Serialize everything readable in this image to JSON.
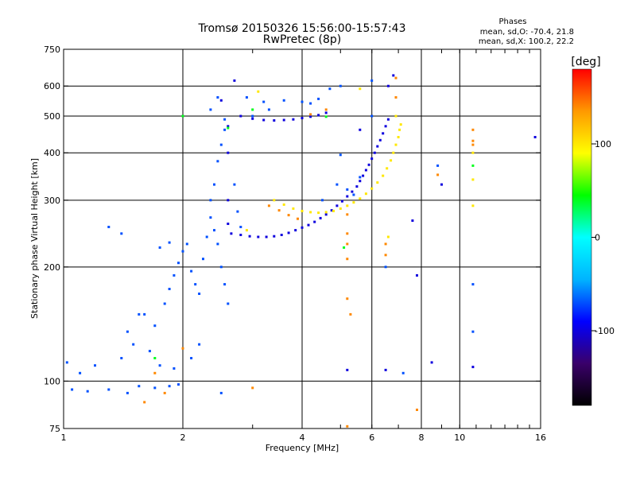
{
  "chart_data": {
    "type": "scatter",
    "title": "Tromsø 20150326 15:56:00-15:57:43",
    "subtitle": "RwPretec (8p)",
    "legend": {
      "header": "Phases",
      "line1": "mean, sd,O: -70.4, 21.8",
      "line2": "mean, sd,X: 100.2, 22.2"
    },
    "xlabel": "Frequency [MHz]",
    "ylabel": "Stationary phase Virtual Height [km]",
    "x_scale": "log",
    "y_scale": "log",
    "xlim": [
      1,
      16
    ],
    "ylim": [
      75,
      750
    ],
    "x_ticks": [
      1,
      2,
      4,
      6,
      8,
      10,
      16
    ],
    "x_tick_labels": [
      "1",
      "2",
      "4",
      "6",
      "8",
      "10",
      "16"
    ],
    "y_ticks": [
      75,
      100,
      200,
      300,
      400,
      500,
      600,
      750
    ],
    "y_tick_labels": [
      "75",
      "100",
      "200",
      "300",
      "400",
      "500",
      "600",
      "750"
    ],
    "grid": true,
    "colorbar": {
      "label": "[deg]",
      "range": [
        -180,
        180
      ],
      "ticks": [
        100,
        0,
        -100
      ],
      "tick_labels": [
        "100",
        "0",
        "-100"
      ],
      "colors": [
        "#000000",
        "#3a006a",
        "#0000ff",
        "#00b4ff",
        "#00ffff",
        "#00ff00",
        "#ffff00",
        "#ff9900",
        "#ff0000"
      ]
    },
    "series": [
      {
        "phase": -100,
        "points": [
          [
            2.65,
            245
          ],
          [
            2.8,
            243
          ],
          [
            2.95,
            241
          ],
          [
            3.1,
            240
          ],
          [
            3.25,
            240
          ],
          [
            3.4,
            241
          ],
          [
            3.55,
            243
          ],
          [
            3.7,
            246
          ],
          [
            3.85,
            250
          ],
          [
            4.0,
            254
          ],
          [
            4.15,
            258
          ],
          [
            4.3,
            263
          ],
          [
            4.45,
            269
          ],
          [
            4.6,
            275
          ],
          [
            4.75,
            282
          ],
          [
            4.9,
            290
          ],
          [
            5.05,
            298
          ],
          [
            5.2,
            307
          ],
          [
            5.35,
            316
          ],
          [
            5.5,
            326
          ],
          [
            5.6,
            337
          ],
          [
            5.7,
            348
          ],
          [
            5.8,
            360
          ],
          [
            5.9,
            372
          ],
          [
            6.0,
            386
          ],
          [
            6.1,
            400
          ],
          [
            6.2,
            416
          ],
          [
            6.3,
            432
          ],
          [
            6.4,
            450
          ],
          [
            6.5,
            470
          ],
          [
            6.6,
            490
          ],
          [
            2.8,
            500
          ],
          [
            3.0,
            492
          ],
          [
            3.2,
            488
          ],
          [
            3.4,
            487
          ],
          [
            3.6,
            488
          ],
          [
            3.8,
            490
          ],
          [
            4.0,
            494
          ],
          [
            4.2,
            498
          ],
          [
            4.4,
            503
          ],
          [
            4.6,
            510
          ],
          [
            2.5,
            550
          ],
          [
            2.6,
            470
          ],
          [
            2.6,
            400
          ],
          [
            2.6,
            300
          ],
          [
            2.6,
            260
          ],
          [
            2.7,
            620
          ],
          [
            5.6,
            460
          ],
          [
            6.6,
            600
          ],
          [
            6.8,
            640
          ],
          [
            5.2,
            107
          ],
          [
            6.5,
            107
          ],
          [
            7.6,
            265
          ],
          [
            7.8,
            190
          ],
          [
            8.5,
            112
          ],
          [
            9.0,
            330
          ],
          [
            10.8,
            109
          ],
          [
            15.5,
            440
          ]
        ]
      },
      {
        "phase": -70,
        "points": [
          [
            1.05,
            95
          ],
          [
            1.15,
            94
          ],
          [
            1.3,
            95
          ],
          [
            1.45,
            93
          ],
          [
            1.55,
            97
          ],
          [
            1.7,
            96
          ],
          [
            1.85,
            97
          ],
          [
            1.95,
            98
          ],
          [
            1.4,
            115
          ],
          [
            1.5,
            125
          ],
          [
            1.6,
            150
          ],
          [
            1.7,
            140
          ],
          [
            1.8,
            160
          ],
          [
            1.85,
            175
          ],
          [
            1.9,
            190
          ],
          [
            1.95,
            205
          ],
          [
            2.0,
            220
          ],
          [
            2.05,
            230
          ],
          [
            2.1,
            195
          ],
          [
            2.15,
            180
          ],
          [
            2.2,
            170
          ],
          [
            2.25,
            210
          ],
          [
            2.3,
            240
          ],
          [
            2.35,
            300
          ],
          [
            2.4,
            330
          ],
          [
            2.45,
            380
          ],
          [
            2.5,
            420
          ],
          [
            2.55,
            460
          ],
          [
            2.35,
            520
          ],
          [
            2.45,
            560
          ],
          [
            2.55,
            490
          ],
          [
            2.35,
            270
          ],
          [
            2.4,
            250
          ],
          [
            2.45,
            230
          ],
          [
            2.5,
            200
          ],
          [
            2.55,
            180
          ],
          [
            2.6,
            160
          ],
          [
            2.7,
            330
          ],
          [
            2.75,
            280
          ],
          [
            2.8,
            255
          ],
          [
            1.75,
            225
          ],
          [
            1.85,
            232
          ],
          [
            1.3,
            255
          ],
          [
            1.4,
            245
          ],
          [
            1.55,
            150
          ],
          [
            1.45,
            135
          ],
          [
            1.65,
            120
          ],
          [
            1.2,
            110
          ],
          [
            1.75,
            110
          ],
          [
            1.9,
            108
          ],
          [
            2.1,
            115
          ],
          [
            2.2,
            125
          ],
          [
            1.02,
            112
          ],
          [
            1.1,
            105
          ],
          [
            2.5,
            93
          ],
          [
            3.0,
            500
          ],
          [
            3.2,
            545
          ],
          [
            3.6,
            550
          ],
          [
            4.0,
            545
          ],
          [
            4.2,
            540
          ],
          [
            4.4,
            555
          ],
          [
            4.7,
            590
          ],
          [
            5.0,
            600
          ],
          [
            6.0,
            620
          ],
          [
            2.9,
            560
          ],
          [
            3.3,
            520
          ],
          [
            5.2,
            320
          ],
          [
            5.4,
            310
          ],
          [
            4.5,
            300
          ],
          [
            4.9,
            330
          ],
          [
            5.6,
            345
          ],
          [
            5.0,
            395
          ],
          [
            6.0,
            500
          ],
          [
            10.8,
            180
          ],
          [
            10.8,
            135
          ],
          [
            8.8,
            370
          ],
          [
            6.5,
            200
          ],
          [
            7.2,
            105
          ]
        ]
      },
      {
        "phase": 100,
        "points": [
          [
            3.4,
            300
          ],
          [
            3.6,
            292
          ],
          [
            3.8,
            285
          ],
          [
            4.0,
            281
          ],
          [
            4.2,
            279
          ],
          [
            4.4,
            278
          ],
          [
            4.6,
            279
          ],
          [
            4.8,
            281
          ],
          [
            5.0,
            285
          ],
          [
            5.2,
            290
          ],
          [
            5.4,
            296
          ],
          [
            5.6,
            303
          ],
          [
            5.8,
            312
          ],
          [
            6.0,
            322
          ],
          [
            6.2,
            334
          ],
          [
            6.4,
            348
          ],
          [
            6.55,
            364
          ],
          [
            6.7,
            382
          ],
          [
            6.8,
            400
          ],
          [
            6.9,
            420
          ],
          [
            7.0,
            440
          ],
          [
            7.05,
            460
          ],
          [
            7.1,
            475
          ],
          [
            10.8,
            400
          ],
          [
            10.8,
            340
          ],
          [
            10.8,
            290
          ],
          [
            6.6,
            240
          ],
          [
            5.6,
            590
          ],
          [
            6.9,
            500
          ],
          [
            3.1,
            580
          ],
          [
            2.9,
            250
          ]
        ]
      },
      {
        "phase": 140,
        "points": [
          [
            3.3,
            290
          ],
          [
            3.5,
            282
          ],
          [
            3.7,
            274
          ],
          [
            3.9,
            268
          ],
          [
            5.2,
            275
          ],
          [
            5.2,
            245
          ],
          [
            5.2,
            230
          ],
          [
            5.2,
            210
          ],
          [
            6.5,
            230
          ],
          [
            6.5,
            215
          ],
          [
            4.6,
            520
          ],
          [
            4.2,
            505
          ],
          [
            10.8,
            460
          ],
          [
            10.8,
            430
          ],
          [
            10.8,
            420
          ],
          [
            8.8,
            350
          ],
          [
            6.9,
            630
          ],
          [
            6.9,
            560
          ],
          [
            5.2,
            165
          ],
          [
            5.3,
            150
          ],
          [
            1.6,
            88
          ],
          [
            1.8,
            93
          ],
          [
            2.0,
            122
          ],
          [
            1.7,
            105
          ],
          [
            7.8,
            84
          ],
          [
            5.2,
            76
          ],
          [
            3.0,
            96
          ]
        ]
      },
      {
        "phase": 40,
        "points": [
          [
            2.0,
            500
          ],
          [
            2.6,
            465
          ],
          [
            3.0,
            520
          ],
          [
            4.6,
            498
          ],
          [
            5.1,
            225
          ],
          [
            10.8,
            370
          ],
          [
            1.7,
            115
          ]
        ]
      }
    ]
  }
}
